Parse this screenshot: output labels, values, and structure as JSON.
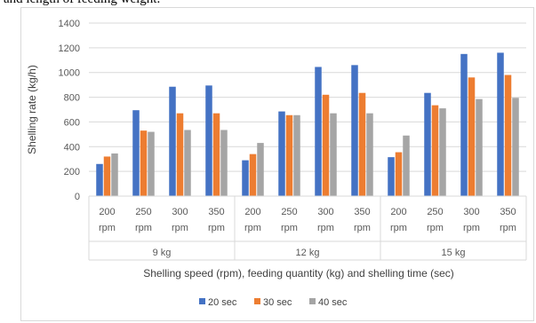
{
  "caption": "and length of feeding weight.",
  "colors": {
    "s20": "#4472c4",
    "s30": "#ed7d31",
    "s40": "#a5a5a5",
    "grid": "#d9d9d9",
    "text": "#595959"
  },
  "chart_data": {
    "type": "bar",
    "title": "",
    "ylabel": "Shelling rate (kg/h)",
    "xlabel": "Shelling speed (rpm), feeding quantity (kg) and shelling time (sec)",
    "ylim": [
      0,
      1400
    ],
    "yticks": [
      "0",
      "200",
      "400",
      "600",
      "800",
      "1000",
      "1200",
      "1400"
    ],
    "grid": true,
    "legend": "bottom",
    "groups": [
      {
        "label": "9 kg",
        "speeds": [
          [
            "200",
            "rpm"
          ],
          [
            "250",
            "rpm"
          ],
          [
            "300",
            "rpm"
          ],
          [
            "350",
            "rpm"
          ]
        ]
      },
      {
        "label": "12 kg",
        "speeds": [
          [
            "200",
            "rpm"
          ],
          [
            "250",
            "rpm"
          ],
          [
            "300",
            "rpm"
          ],
          [
            "350",
            "rpm"
          ]
        ]
      },
      {
        "label": "15 kg",
        "speeds": [
          [
            "200",
            "rpm"
          ],
          [
            "250",
            "rpm"
          ],
          [
            "300",
            "rpm"
          ],
          [
            "350",
            "rpm"
          ]
        ]
      }
    ],
    "series": [
      {
        "name": "20 sec",
        "color": "#4472c4",
        "values": [
          260,
          695,
          885,
          895,
          290,
          685,
          1045,
          1060,
          315,
          835,
          1150,
          1160
        ]
      },
      {
        "name": "30 sec",
        "color": "#ed7d31",
        "values": [
          320,
          530,
          670,
          670,
          340,
          655,
          820,
          835,
          355,
          735,
          960,
          980
        ]
      },
      {
        "name": "40 sec",
        "color": "#a5a5a5",
        "values": [
          345,
          520,
          535,
          535,
          430,
          655,
          670,
          670,
          490,
          710,
          785,
          795
        ]
      }
    ]
  }
}
